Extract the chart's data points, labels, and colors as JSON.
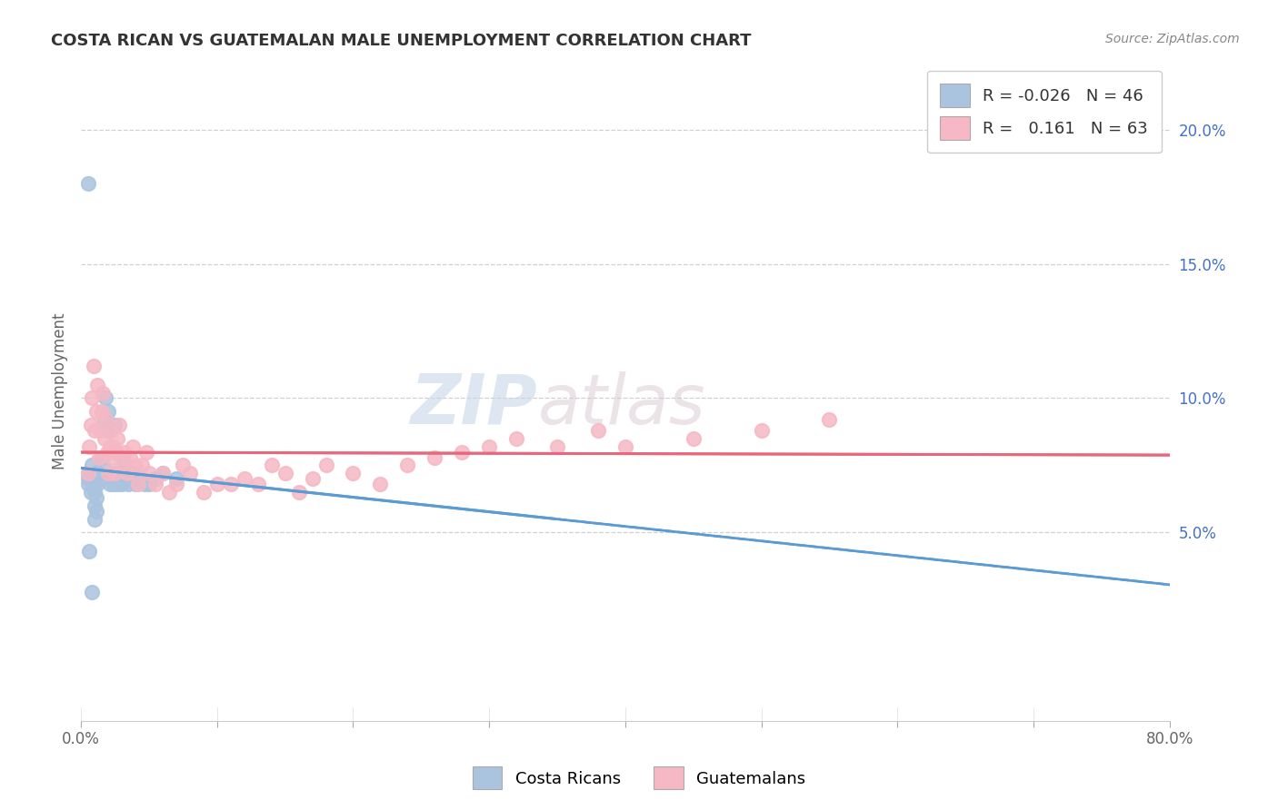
{
  "title": "COSTA RICAN VS GUATEMALAN MALE UNEMPLOYMENT CORRELATION CHART",
  "source": "Source: ZipAtlas.com",
  "ylabel": "Male Unemployment",
  "xlabel": "",
  "xlim": [
    0,
    0.8
  ],
  "ylim": [
    -0.02,
    0.225
  ],
  "xticks": [
    0.0,
    0.1,
    0.2,
    0.3,
    0.4,
    0.5,
    0.6,
    0.7,
    0.8
  ],
  "xticklabels_show": [
    "0.0%",
    "",
    "",
    "",
    "",
    "",
    "",
    "",
    "80.0%"
  ],
  "yticks_right": [
    0.05,
    0.1,
    0.15,
    0.2
  ],
  "yticklabels_right": [
    "5.0%",
    "10.0%",
    "15.0%",
    "20.0%"
  ],
  "legend_R1": "-0.026",
  "legend_N1": "46",
  "legend_R2": "0.161",
  "legend_N2": "63",
  "color_blue": "#aac4df",
  "color_pink": "#f5b8c4",
  "line_blue": "#5b9bd5",
  "line_pink": "#e8677a",
  "watermark_zip": "ZIP",
  "watermark_atlas": "atlas",
  "background_color": "#ffffff",
  "grid_color": "#d0d0d0",
  "costa_rican_x": [
    0.005,
    0.005,
    0.005,
    0.007,
    0.008,
    0.009,
    0.01,
    0.01,
    0.01,
    0.01,
    0.01,
    0.011,
    0.011,
    0.012,
    0.013,
    0.014,
    0.015,
    0.016,
    0.017,
    0.018,
    0.02,
    0.02,
    0.021,
    0.022,
    0.023,
    0.024,
    0.025,
    0.025,
    0.027,
    0.028,
    0.03,
    0.031,
    0.032,
    0.033,
    0.035,
    0.038,
    0.04,
    0.043,
    0.047,
    0.05,
    0.055,
    0.06,
    0.07,
    0.005,
    0.006,
    0.008
  ],
  "costa_rican_y": [
    0.07,
    0.072,
    0.068,
    0.065,
    0.075,
    0.068,
    0.065,
    0.072,
    0.068,
    0.06,
    0.055,
    0.063,
    0.058,
    0.068,
    0.072,
    0.07,
    0.078,
    0.075,
    0.092,
    0.1,
    0.095,
    0.088,
    0.068,
    0.072,
    0.07,
    0.068,
    0.08,
    0.09,
    0.068,
    0.072,
    0.068,
    0.072,
    0.076,
    0.07,
    0.068,
    0.072,
    0.068,
    0.07,
    0.068,
    0.068,
    0.07,
    0.072,
    0.07,
    0.18,
    0.043,
    0.028
  ],
  "guatemalan_x": [
    0.005,
    0.006,
    0.007,
    0.008,
    0.009,
    0.01,
    0.011,
    0.012,
    0.013,
    0.014,
    0.015,
    0.016,
    0.017,
    0.018,
    0.019,
    0.02,
    0.021,
    0.022,
    0.023,
    0.024,
    0.025,
    0.026,
    0.027,
    0.028,
    0.03,
    0.032,
    0.034,
    0.036,
    0.038,
    0.04,
    0.042,
    0.045,
    0.048,
    0.05,
    0.055,
    0.06,
    0.065,
    0.07,
    0.075,
    0.08,
    0.09,
    0.1,
    0.11,
    0.12,
    0.13,
    0.14,
    0.15,
    0.16,
    0.17,
    0.18,
    0.2,
    0.22,
    0.24,
    0.26,
    0.28,
    0.3,
    0.32,
    0.35,
    0.38,
    0.4,
    0.45,
    0.5,
    0.55
  ],
  "guatemalan_y": [
    0.072,
    0.082,
    0.09,
    0.1,
    0.112,
    0.088,
    0.095,
    0.105,
    0.078,
    0.088,
    0.095,
    0.102,
    0.085,
    0.092,
    0.08,
    0.072,
    0.082,
    0.088,
    0.078,
    0.082,
    0.072,
    0.08,
    0.085,
    0.09,
    0.075,
    0.08,
    0.072,
    0.078,
    0.082,
    0.075,
    0.068,
    0.075,
    0.08,
    0.072,
    0.068,
    0.072,
    0.065,
    0.068,
    0.075,
    0.072,
    0.065,
    0.068,
    0.068,
    0.07,
    0.068,
    0.075,
    0.072,
    0.065,
    0.07,
    0.075,
    0.072,
    0.068,
    0.075,
    0.078,
    0.08,
    0.082,
    0.085,
    0.082,
    0.088,
    0.082,
    0.085,
    0.088,
    0.092
  ]
}
